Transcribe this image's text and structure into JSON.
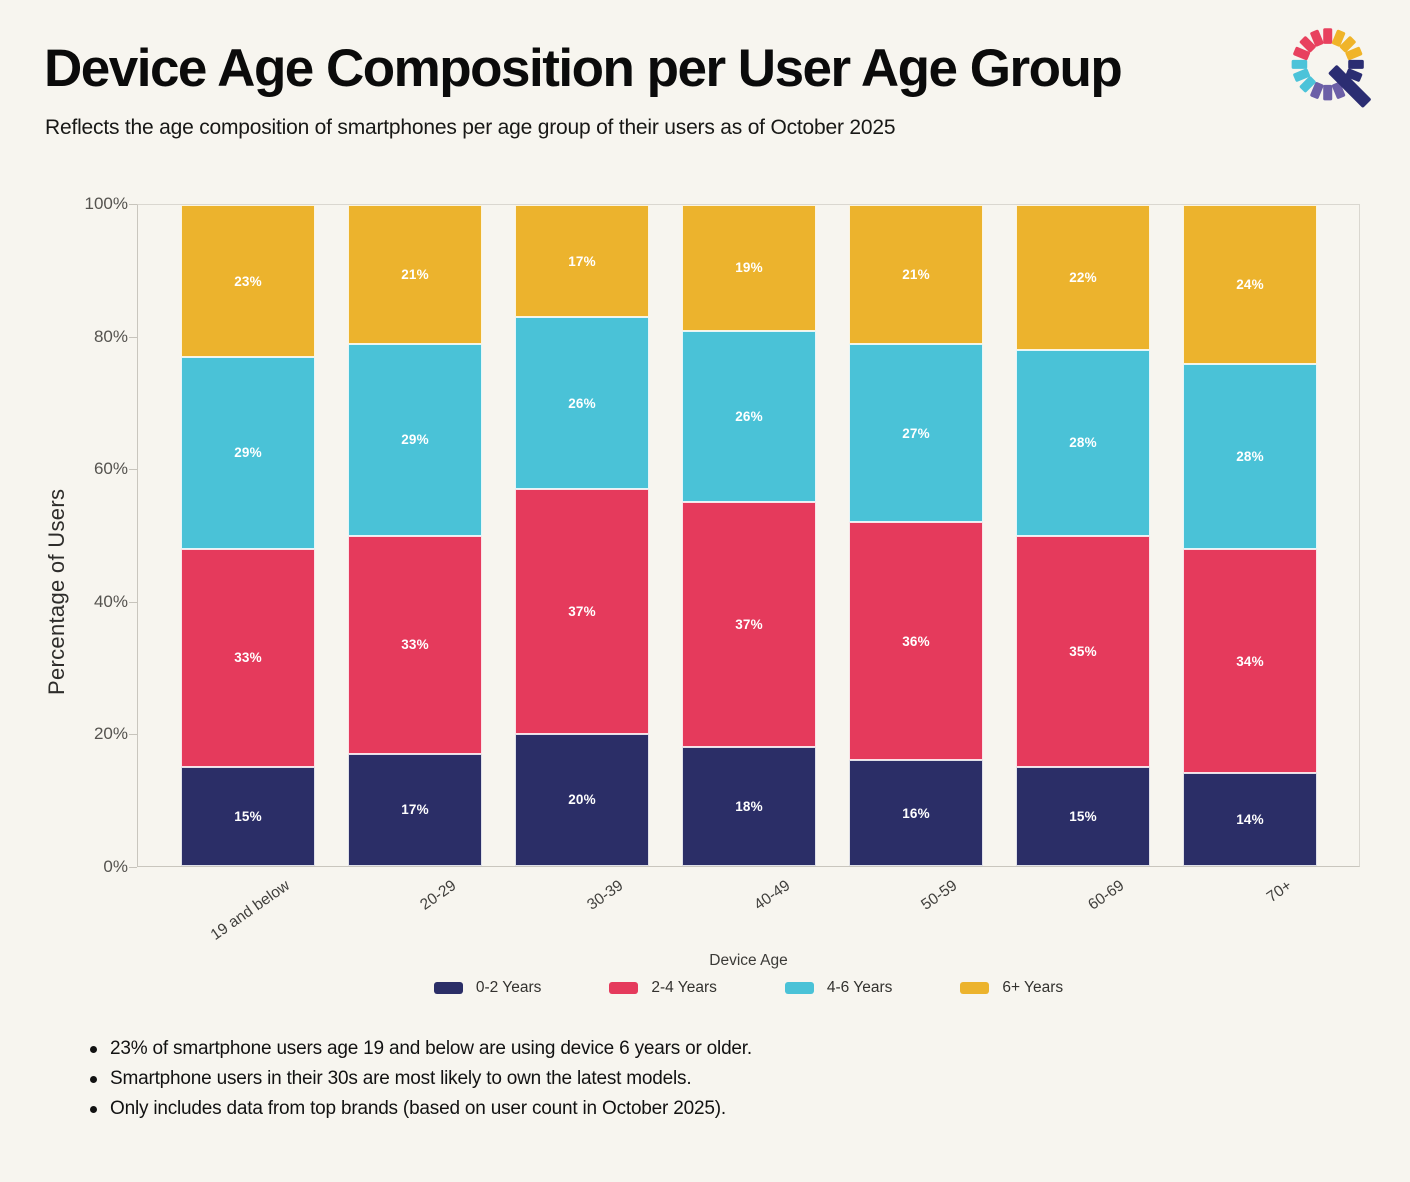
{
  "header": {
    "title": "Device Age Composition per User Age Group",
    "subtitle": "Reflects the age composition of smartphones per age group of their users as of October 2025"
  },
  "logo": {
    "icon": "magnifying-glass-brand-logo",
    "dash_colors": [
      "#e8415e",
      "#f0b429",
      "#f0b429",
      "#f0b429",
      "#2b2d72",
      "#2b2d72",
      "#6c5fa7",
      "#6c5fa7",
      "#6c5fa7",
      "#4cc3d9",
      "#4cc3d9",
      "#4cc3d9",
      "#e8415e",
      "#e8415e",
      "#e8415e"
    ],
    "dash_angles": [
      0,
      22.5,
      45,
      67.5,
      90,
      112.5,
      157.5,
      180,
      202.5,
      225,
      247.5,
      270,
      292.5,
      315,
      337.5
    ],
    "handle_color": "#2b2d72"
  },
  "chart_data": {
    "type": "bar",
    "stacked": true,
    "percent": true,
    "title": "Device Age Composition per User Age Group",
    "categories": [
      "19 and below",
      "20-29",
      "30-39",
      "40-49",
      "50-59",
      "60-69",
      "70+"
    ],
    "series": [
      {
        "name": "0-2 Years",
        "color": "#2b2e67",
        "values": [
          15,
          17,
          20,
          18,
          16,
          15,
          14
        ]
      },
      {
        "name": "2-4 Years",
        "color": "#e53a5c",
        "values": [
          33,
          33,
          37,
          37,
          36,
          35,
          34
        ]
      },
      {
        "name": "4-6 Years",
        "color": "#4ac2d7",
        "values": [
          29,
          29,
          26,
          26,
          27,
          28,
          28
        ]
      },
      {
        "name": "6+ Years",
        "color": "#ecb32d",
        "values": [
          23,
          21,
          17,
          19,
          21,
          22,
          24
        ]
      }
    ],
    "xlabel": "",
    "ylabel": "Percentage of  Users",
    "ylim": [
      0,
      100
    ],
    "yticks": [
      0,
      20,
      40,
      60,
      80,
      100
    ],
    "ytick_suffix": "%",
    "grid": false,
    "legend_title": "Device Age",
    "legend_position": "bottom",
    "value_label_suffix": "%"
  },
  "notes": [
    "23% of smartphone users age 19 and below are using device 6 years or older.",
    "Smartphone users in their 30s are most likely to own the latest models.",
    "Only includes data from top brands (based on user count in October 2025)."
  ],
  "colors": {
    "background": "#f7f5ef",
    "axis_text": "#55534f",
    "frame": "#dad7d0"
  }
}
